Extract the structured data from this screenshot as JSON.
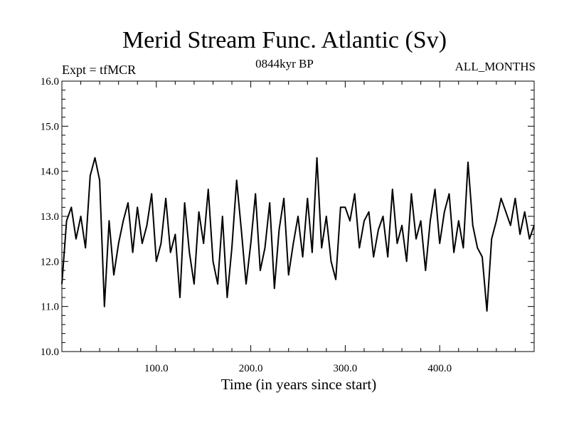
{
  "chart_data": {
    "type": "line",
    "title": "Merid Stream Func. Atlantic (Sv)",
    "subtitle_left": "Expt = tfMCR",
    "subtitle_center": "0844kyr BP",
    "subtitle_right": "ALL_MONTHS",
    "xlabel": "Time (in years since start)",
    "ylabel": "",
    "xlim": [
      0,
      500
    ],
    "ylim": [
      10.0,
      16.0
    ],
    "xticks": [
      100.0,
      200.0,
      300.0,
      400.0
    ],
    "xtick_labels": [
      "100.0",
      "200.0",
      "300.0",
      "400.0"
    ],
    "yticks": [
      10.0,
      11.0,
      12.0,
      13.0,
      14.0,
      15.0,
      16.0
    ],
    "ytick_labels": [
      "10.0",
      "11.0",
      "12.0",
      "13.0",
      "14.0",
      "15.0",
      "16.0"
    ],
    "grid": false,
    "series": [
      {
        "name": "Merid Stream Func. Atlantic",
        "x": [
          0,
          5,
          10,
          15,
          20,
          25,
          30,
          35,
          40,
          45,
          50,
          55,
          60,
          65,
          70,
          75,
          80,
          85,
          90,
          95,
          100,
          105,
          110,
          115,
          120,
          125,
          130,
          135,
          140,
          145,
          150,
          155,
          160,
          165,
          170,
          175,
          180,
          185,
          190,
          195,
          200,
          205,
          210,
          215,
          220,
          225,
          230,
          235,
          240,
          245,
          250,
          255,
          260,
          265,
          270,
          275,
          280,
          285,
          290,
          295,
          300,
          305,
          310,
          315,
          320,
          325,
          330,
          335,
          340,
          345,
          350,
          355,
          360,
          365,
          370,
          375,
          380,
          385,
          390,
          395,
          400,
          405,
          410,
          415,
          420,
          425,
          430,
          435,
          440,
          445,
          450,
          455,
          460,
          465,
          470,
          475,
          480,
          485,
          490,
          495,
          500
        ],
        "values": [
          11.5,
          12.9,
          13.2,
          12.5,
          13.0,
          12.3,
          13.9,
          14.3,
          13.8,
          11.0,
          12.9,
          11.7,
          12.4,
          12.9,
          13.3,
          12.2,
          13.2,
          12.4,
          12.8,
          13.5,
          12.0,
          12.4,
          13.4,
          12.2,
          12.6,
          11.2,
          13.3,
          12.2,
          11.5,
          13.1,
          12.4,
          13.6,
          12.0,
          11.5,
          13.0,
          11.2,
          12.3,
          13.8,
          12.7,
          11.5,
          12.4,
          13.5,
          11.8,
          12.3,
          13.3,
          11.4,
          12.7,
          13.4,
          11.7,
          12.4,
          13.0,
          12.1,
          13.4,
          12.2,
          14.3,
          12.3,
          13.0,
          12.0,
          11.6,
          13.2,
          13.2,
          12.9,
          13.5,
          12.3,
          12.9,
          13.1,
          12.1,
          12.7,
          13.0,
          12.1,
          13.6,
          12.4,
          12.8,
          12.0,
          13.5,
          12.5,
          12.9,
          11.8,
          12.9,
          13.6,
          12.4,
          13.1,
          13.5,
          12.2,
          12.9,
          12.3,
          14.2,
          12.8,
          12.3,
          12.1,
          10.9,
          12.5,
          12.9,
          13.4,
          13.1,
          12.8,
          13.4,
          12.6,
          13.1,
          12.5,
          12.8
        ]
      }
    ]
  }
}
